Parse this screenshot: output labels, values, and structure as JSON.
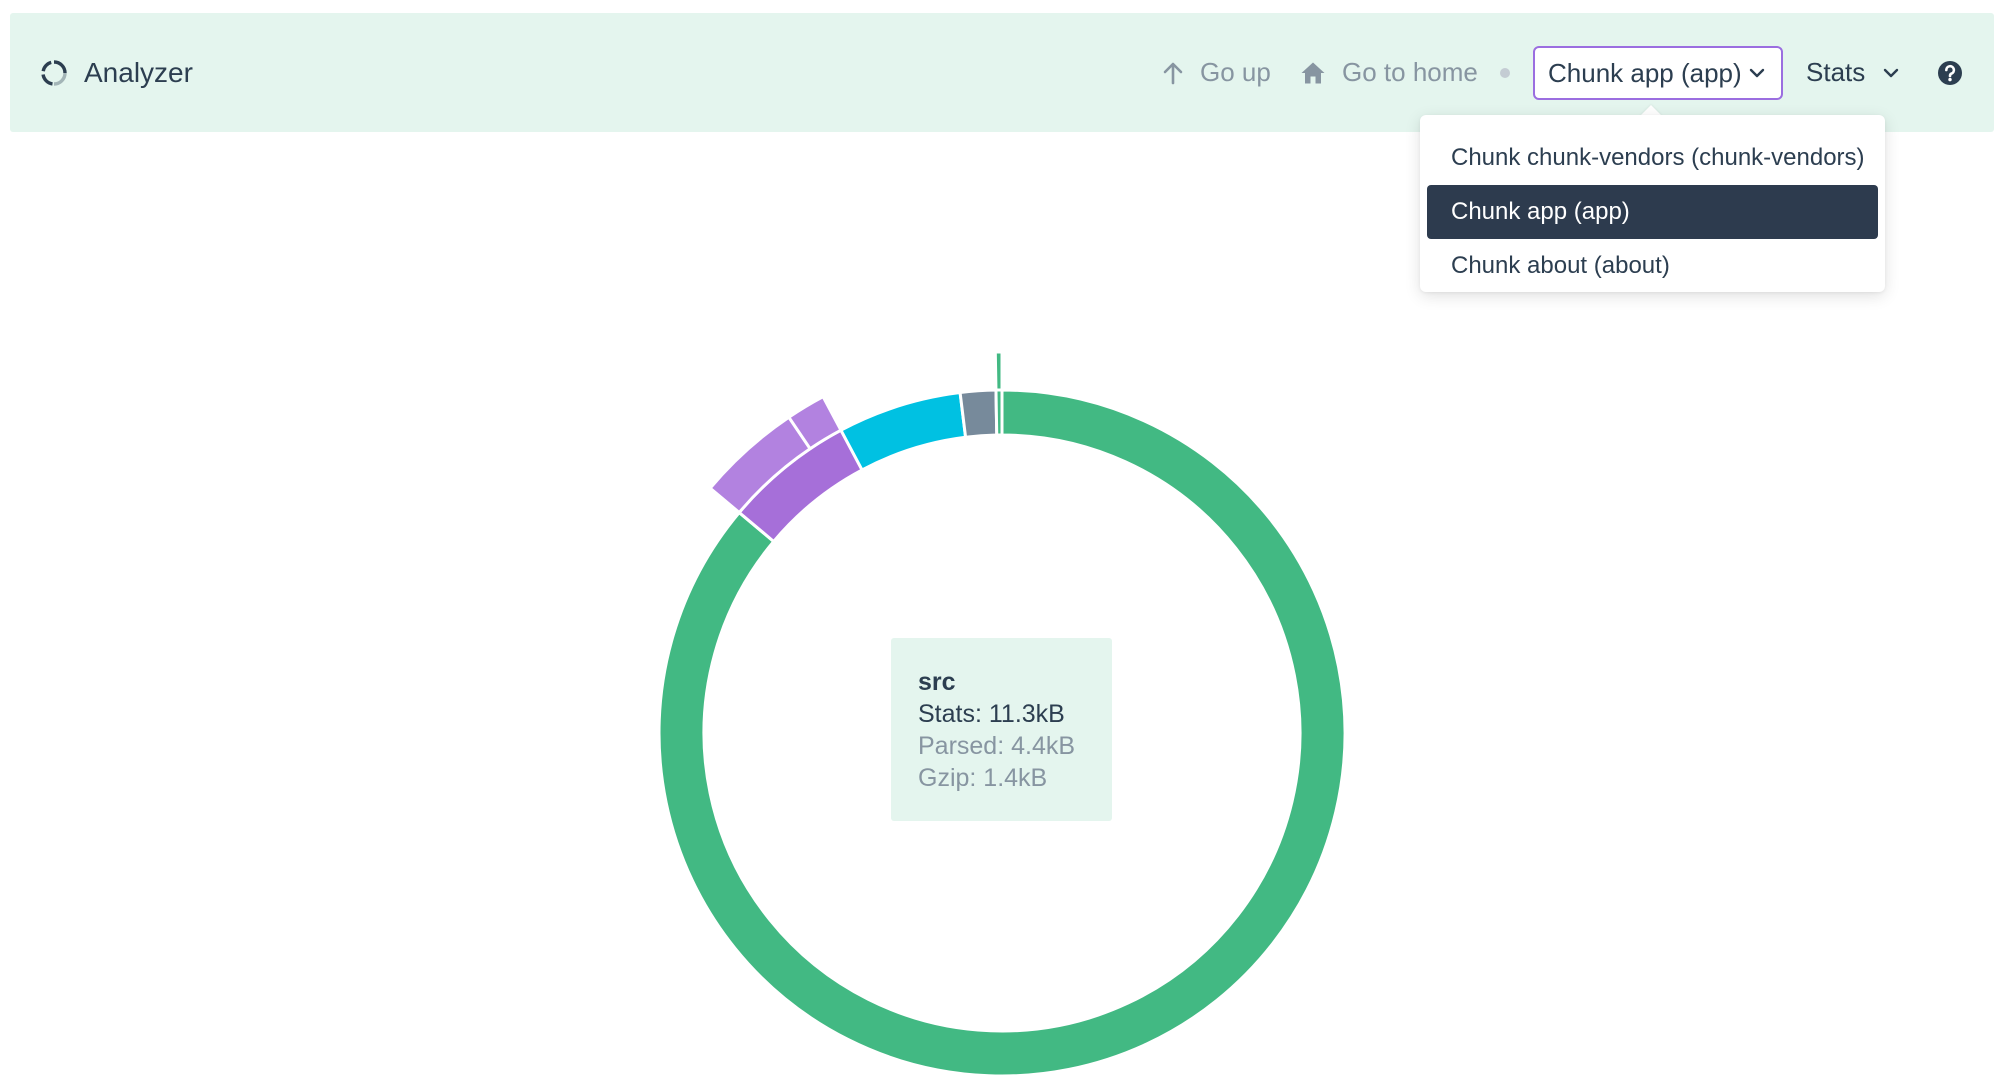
{
  "app": {
    "title": "Analyzer",
    "logo_icon": "loader-ring-icon"
  },
  "nav": {
    "go_up_label": "Go up",
    "go_up_icon": "arrow-up-icon",
    "go_home_label": "Go to home",
    "go_home_icon": "home-icon"
  },
  "chunk_select": {
    "value": "Chunk app (app)",
    "options": [
      "Chunk chunk-vendors (chunk-vendors)",
      "Chunk app (app)",
      "Chunk about (about)"
    ],
    "selected_index": 1
  },
  "size_select": {
    "value": "Stats"
  },
  "help_icon": "question-circle-icon",
  "tooltip": {
    "name": "src",
    "stats": "Stats: 11.3kB",
    "parsed": "Parsed: 4.4kB",
    "gzip": "Gzip: 1.4kB"
  },
  "colors": {
    "header_bg": "#e4f5ee",
    "accent_purple": "#9b6ee0",
    "green": "#42b983",
    "cyan": "#00c1e2",
    "slate": "#778a9b",
    "purple": "#a66fd9",
    "light_purple": "#b282e0",
    "dark": "#2d3b4e"
  },
  "chart_data": {
    "type": "sunburst",
    "rings": [
      {
        "level": 1,
        "segments": [
          {
            "name": "src",
            "share": 0.8611,
            "color": "#42b983"
          },
          {
            "name": "segment-purple",
            "share": 0.0611,
            "color": "#a66fd9"
          },
          {
            "name": "segment-cyan",
            "share": 0.0583,
            "color": "#00c1e2"
          },
          {
            "name": "segment-slate",
            "share": 0.0167,
            "color": "#778a9b"
          },
          {
            "name": "segment-thin-green",
            "share": 0.0028,
            "color": "#42b983"
          }
        ]
      },
      {
        "level": 2,
        "segments": [
          {
            "parent": "segment-purple",
            "share": 0.0444,
            "color": "#b282e0"
          },
          {
            "parent": "segment-purple",
            "share": 0.0167,
            "color": "#b282e0"
          },
          {
            "parent": "segment-thin-green",
            "share": 0.0028,
            "color": "#42b983"
          }
        ]
      }
    ]
  }
}
